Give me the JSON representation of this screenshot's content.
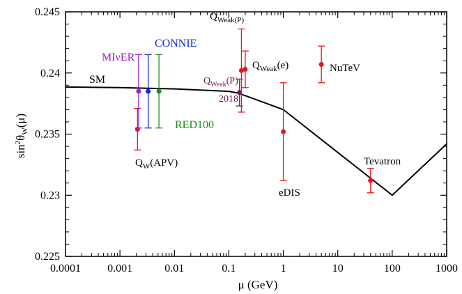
{
  "chart_data": {
    "type": "scatter",
    "xscale": "log",
    "xlim": [
      0.0001,
      1000
    ],
    "ylim": [
      0.225,
      0.245
    ],
    "xlabel": "μ (GeV)",
    "ylabel": "sin²θW(μ)",
    "xticks": [
      {
        "value": 0.0001,
        "label": "0.0001"
      },
      {
        "value": 0.001,
        "label": "0.001"
      },
      {
        "value": 0.01,
        "label": "0.01"
      },
      {
        "value": 0.1,
        "label": "0.1"
      },
      {
        "value": 1,
        "label": "1"
      },
      {
        "value": 10,
        "label": "10"
      },
      {
        "value": 100,
        "label": "100"
      },
      {
        "value": 1000,
        "label": "1000"
      }
    ],
    "yticks": [
      {
        "value": 0.225,
        "label": "0.225"
      },
      {
        "value": 0.23,
        "label": "0.23"
      },
      {
        "value": 0.235,
        "label": "0.235"
      },
      {
        "value": 0.24,
        "label": "0.24"
      },
      {
        "value": 0.245,
        "label": "0.245"
      }
    ],
    "sm_curve": {
      "label": "SM",
      "color": "#000000",
      "points": [
        {
          "x": 0.0001,
          "y": 0.23885
        },
        {
          "x": 0.001,
          "y": 0.2388
        },
        {
          "x": 0.01,
          "y": 0.2387
        },
        {
          "x": 0.1,
          "y": 0.2385
        },
        {
          "x": 0.15,
          "y": 0.23835
        },
        {
          "x": 1,
          "y": 0.237
        },
        {
          "x": 10,
          "y": 0.2335
        },
        {
          "x": 100,
          "y": 0.23
        },
        {
          "x": 1000,
          "y": 0.2342
        }
      ]
    },
    "measurements": [
      {
        "label": "QW(APV)",
        "x": 0.0021,
        "y": 0.2354,
        "err": 0.0017,
        "color": "#e8141e"
      },
      {
        "label": "QWeak(P) 2018",
        "x": 0.157,
        "y": 0.2384,
        "err": 0.0011,
        "color": "#6e1460"
      },
      {
        "label": "QWeak(P)",
        "x": 0.17,
        "y": 0.2402,
        "err": 0.0034,
        "color": "#e8141e"
      },
      {
        "label": "QWeak(e)",
        "x": 0.2,
        "y": 0.2403,
        "err": 0.0015,
        "color": "#e8141e"
      },
      {
        "label": "eDIS",
        "x": 1.0,
        "y": 0.2352,
        "err": 0.004,
        "color": "#e8141e"
      },
      {
        "label": "NuTeV",
        "x": 5.0,
        "y": 0.2407,
        "err": 0.0015,
        "color": "#e8141e"
      },
      {
        "label": "Tevatron",
        "x": 40,
        "y": 0.2312,
        "err": 0.001,
        "color": "#e8141e"
      }
    ],
    "projections": [
      {
        "label": "MIνER",
        "x": 0.0022,
        "y": 0.2385,
        "err": 0.003,
        "color": "#a020c8"
      },
      {
        "label": "CONNIE",
        "x": 0.0033,
        "y": 0.2385,
        "err": 0.003,
        "color": "#1428dc"
      },
      {
        "label": "RED100",
        "x": 0.0052,
        "y": 0.2385,
        "err": 0.003,
        "color": "#1e8c1e"
      }
    ]
  }
}
